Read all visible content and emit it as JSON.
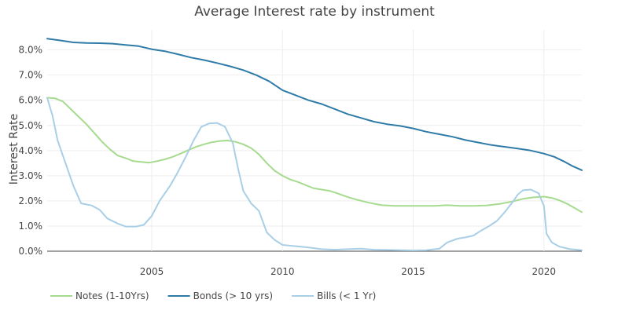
{
  "chart_data": {
    "type": "line",
    "title": "Average Interest rate by instrument",
    "xlabel": "",
    "ylabel": "Interest Rate",
    "xlim": [
      2001.0,
      2021.45
    ],
    "ylim": [
      0,
      8.8
    ],
    "x_ticks": [
      {
        "value": 2005,
        "label": "2005"
      },
      {
        "value": 2010,
        "label": "2010"
      },
      {
        "value": 2015,
        "label": "2015"
      },
      {
        "value": 2020,
        "label": "2020"
      }
    ],
    "y_ticks": [
      {
        "value": 0,
        "label": "0.0%"
      },
      {
        "value": 1,
        "label": "1.0%"
      },
      {
        "value": 2,
        "label": "2.0%"
      },
      {
        "value": 3,
        "label": "3.0%"
      },
      {
        "value": 4,
        "label": "4.0%"
      },
      {
        "value": 5,
        "label": "5.0%"
      },
      {
        "value": 6,
        "label": "6.0%"
      },
      {
        "value": 7,
        "label": "7.0%"
      },
      {
        "value": 8,
        "label": "8.0%"
      }
    ],
    "grid": true,
    "legend_position": "bottom",
    "series": [
      {
        "name": "Notes (1-10Yrs)",
        "color": "#a6db8f",
        "x": [
          2001.0,
          2001.3,
          2001.6,
          2001.9,
          2002.2,
          2002.5,
          2002.8,
          2003.1,
          2003.4,
          2003.7,
          2004.0,
          2004.3,
          2004.6,
          2004.9,
          2005.2,
          2005.5,
          2005.8,
          2006.1,
          2006.4,
          2006.7,
          2007.0,
          2007.3,
          2007.6,
          2007.9,
          2008.2,
          2008.5,
          2008.8,
          2009.1,
          2009.4,
          2009.7,
          2010.0,
          2010.3,
          2010.6,
          2010.9,
          2011.2,
          2011.5,
          2011.8,
          2012.1,
          2012.5,
          2012.9,
          2013.3,
          2013.8,
          2014.3,
          2014.8,
          2015.3,
          2015.8,
          2016.3,
          2016.8,
          2017.3,
          2017.8,
          2018.3,
          2018.8,
          2019.2,
          2019.6,
          2020.0,
          2020.3,
          2020.6,
          2020.9,
          2021.2,
          2021.45
        ],
        "values": [
          6.1,
          6.08,
          5.95,
          5.65,
          5.35,
          5.05,
          4.7,
          4.35,
          4.05,
          3.8,
          3.7,
          3.58,
          3.55,
          3.52,
          3.58,
          3.65,
          3.75,
          3.88,
          4.02,
          4.15,
          4.25,
          4.33,
          4.38,
          4.4,
          4.35,
          4.25,
          4.1,
          3.85,
          3.5,
          3.2,
          3.0,
          2.85,
          2.75,
          2.62,
          2.5,
          2.45,
          2.4,
          2.3,
          2.15,
          2.03,
          1.93,
          1.83,
          1.8,
          1.8,
          1.8,
          1.8,
          1.83,
          1.8,
          1.8,
          1.82,
          1.88,
          1.98,
          2.08,
          2.14,
          2.17,
          2.12,
          2.02,
          1.88,
          1.7,
          1.55
        ]
      },
      {
        "name": "Bonds (> 10 yrs)",
        "color": "#2f7ba8",
        "x": [
          2001.0,
          2001.5,
          2002.0,
          2002.5,
          2003.0,
          2003.5,
          2004.0,
          2004.5,
          2005.0,
          2005.5,
          2006.0,
          2006.5,
          2007.0,
          2007.5,
          2008.0,
          2008.5,
          2009.0,
          2009.5,
          2010.0,
          2010.5,
          2011.0,
          2011.5,
          2012.0,
          2012.5,
          2013.0,
          2013.5,
          2014.0,
          2014.5,
          2015.0,
          2015.5,
          2016.0,
          2016.5,
          2017.0,
          2017.5,
          2018.0,
          2018.5,
          2019.0,
          2019.5,
          2020.0,
          2020.4,
          2020.8,
          2021.1,
          2021.45
        ],
        "values": [
          8.45,
          8.38,
          8.3,
          8.28,
          8.27,
          8.25,
          8.2,
          8.15,
          8.03,
          7.95,
          7.83,
          7.7,
          7.6,
          7.48,
          7.35,
          7.2,
          7.0,
          6.75,
          6.4,
          6.2,
          6.0,
          5.85,
          5.65,
          5.45,
          5.3,
          5.15,
          5.05,
          4.98,
          4.88,
          4.75,
          4.65,
          4.55,
          4.42,
          4.32,
          4.22,
          4.15,
          4.08,
          4.0,
          3.88,
          3.75,
          3.55,
          3.38,
          3.22
        ]
      },
      {
        "name": "Bills (< 1 Yr)",
        "color": "#a9cfe6",
        "x": [
          2001.0,
          2001.2,
          2001.4,
          2001.7,
          2002.0,
          2002.3,
          2002.7,
          2003.0,
          2003.3,
          2003.7,
          2004.0,
          2004.4,
          2004.7,
          2005.0,
          2005.3,
          2005.7,
          2006.0,
          2006.3,
          2006.6,
          2006.9,
          2007.2,
          2007.5,
          2007.8,
          2008.1,
          2008.3,
          2008.5,
          2008.8,
          2009.1,
          2009.4,
          2009.7,
          2010.0,
          2010.5,
          2011.0,
          2011.5,
          2012.0,
          2012.5,
          2013.0,
          2013.5,
          2014.0,
          2014.5,
          2015.0,
          2015.5,
          2016.0,
          2016.3,
          2016.7,
          2017.0,
          2017.3,
          2017.6,
          2017.9,
          2018.2,
          2018.5,
          2018.8,
          2019.0,
          2019.2,
          2019.5,
          2019.8,
          2020.0,
          2020.1,
          2020.3,
          2020.6,
          2021.0,
          2021.45
        ],
        "values": [
          6.1,
          5.4,
          4.4,
          3.5,
          2.6,
          1.9,
          1.82,
          1.65,
          1.3,
          1.1,
          0.98,
          0.98,
          1.05,
          1.4,
          2.0,
          2.6,
          3.15,
          3.75,
          4.4,
          4.95,
          5.08,
          5.1,
          4.95,
          4.3,
          3.3,
          2.4,
          1.9,
          1.6,
          0.75,
          0.45,
          0.25,
          0.2,
          0.15,
          0.08,
          0.06,
          0.08,
          0.1,
          0.06,
          0.05,
          0.04,
          0.03,
          0.04,
          0.1,
          0.35,
          0.5,
          0.55,
          0.62,
          0.82,
          1.0,
          1.2,
          1.55,
          1.95,
          2.25,
          2.42,
          2.45,
          2.3,
          1.8,
          0.7,
          0.35,
          0.18,
          0.08,
          0.04
        ]
      }
    ]
  }
}
